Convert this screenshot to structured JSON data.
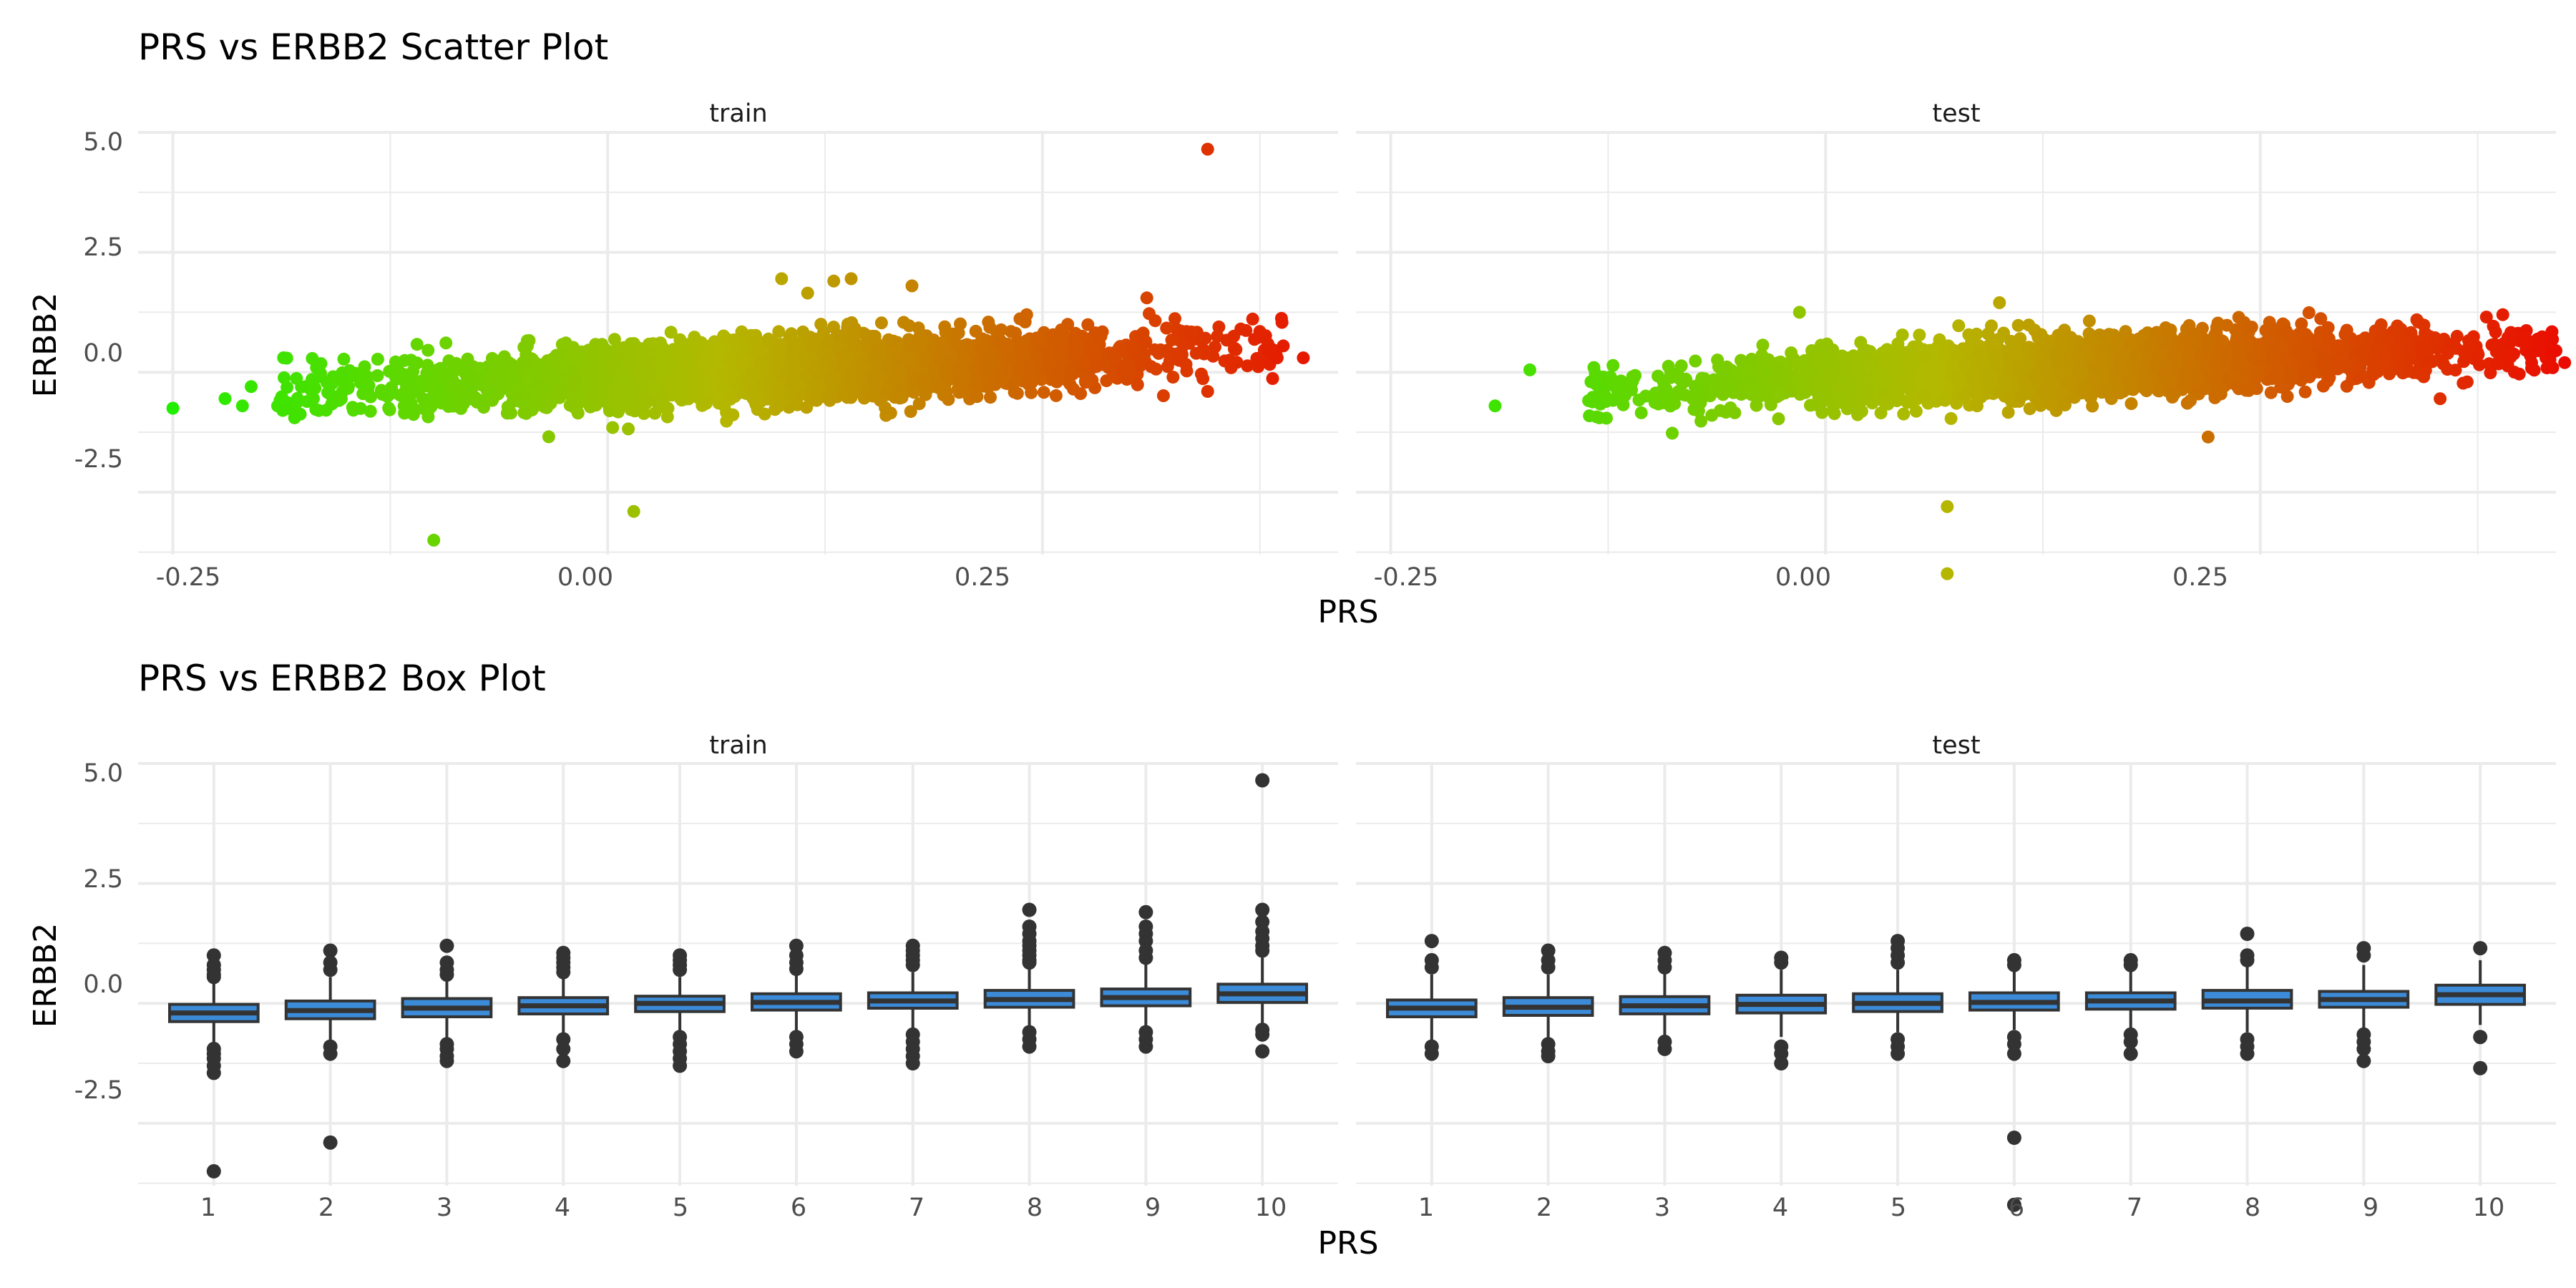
{
  "titles": {
    "scatter": "PRS vs ERBB2 Scatter Plot",
    "box": "PRS vs ERBB2 Box Plot"
  },
  "facets": [
    "train",
    "test"
  ],
  "axes": {
    "x_title": "PRS",
    "y_title": "ERBB2",
    "y_ticks": [
      "5.0",
      "2.5",
      "0.0",
      "-2.5"
    ],
    "scatter_x_ticks": [
      "-0.25",
      "0.00",
      "0.25"
    ],
    "box_x_ticks": [
      "1",
      "2",
      "3",
      "4",
      "5",
      "6",
      "7",
      "8",
      "9",
      "10"
    ]
  },
  "colors": {
    "low": "#22ee00",
    "mid": "#b4b800",
    "high": "#ee0000",
    "box_fill": "#3b8bd8",
    "box_line": "#333333",
    "point_dark": "#333333"
  },
  "chart_data": [
    {
      "type": "scatter",
      "title": "PRS vs ERBB2 Scatter Plot",
      "xlabel": "PRS",
      "ylabel": "ERBB2",
      "xlim": [
        -0.27,
        0.42
      ],
      "ylim": [
        -3.8,
        5.0
      ],
      "grid": true,
      "color_by": "PRS",
      "panels": [
        {
          "facet": "train",
          "core": {
            "x_range": [
              -0.19,
              0.39
            ],
            "slope": 1.4,
            "spread": 0.32
          },
          "outliers": [
            {
              "x": -0.25,
              "y": -0.75
            },
            {
              "x": -0.22,
              "y": -0.55
            },
            {
              "x": -0.21,
              "y": -0.7
            },
            {
              "x": -0.205,
              "y": -0.3
            },
            {
              "x": -0.18,
              "y": -0.95
            },
            {
              "x": -0.17,
              "y": -0.15
            },
            {
              "x": -0.1,
              "y": -3.5
            },
            {
              "x": 0.015,
              "y": -2.9
            },
            {
              "x": 0.1,
              "y": 1.95
            },
            {
              "x": 0.13,
              "y": 1.9
            },
            {
              "x": 0.14,
              "y": 1.95
            },
            {
              "x": 0.115,
              "y": 1.65
            },
            {
              "x": 0.175,
              "y": 1.8
            },
            {
              "x": 0.31,
              "y": 1.55
            },
            {
              "x": 0.345,
              "y": 4.65
            },
            {
              "x": 0.36,
              "y": 0.75
            },
            {
              "x": 0.375,
              "y": 0.85
            },
            {
              "x": 0.38,
              "y": 0.45
            },
            {
              "x": 0.385,
              "y": 0.3
            },
            {
              "x": 0.4,
              "y": 0.3
            },
            {
              "x": 0.345,
              "y": -0.4
            }
          ]
        },
        {
          "facet": "test",
          "core": {
            "x_range": [
              -0.14,
              0.42
            ],
            "slope": 1.5,
            "spread": 0.3
          },
          "outliers": [
            {
              "x": -0.19,
              "y": -0.7
            },
            {
              "x": -0.17,
              "y": 0.05
            },
            {
              "x": -0.13,
              "y": -0.95
            },
            {
              "x": -0.015,
              "y": 1.25
            },
            {
              "x": 0.1,
              "y": 1.45
            },
            {
              "x": 0.07,
              "y": -2.8
            },
            {
              "x": 0.07,
              "y": -4.2
            },
            {
              "x": 0.22,
              "y": -1.35
            },
            {
              "x": 0.38,
              "y": 1.15
            },
            {
              "x": 0.395,
              "y": 0.75
            },
            {
              "x": 0.41,
              "y": 0.45
            },
            {
              "x": 0.42,
              "y": 0.45
            },
            {
              "x": 0.425,
              "y": 0.2
            },
            {
              "x": 0.445,
              "y": 0.75
            },
            {
              "x": 0.445,
              "y": 0.4
            }
          ]
        }
      ]
    },
    {
      "type": "box",
      "title": "PRS vs ERBB2 Box Plot",
      "xlabel": "PRS",
      "ylabel": "ERBB2",
      "categories": [
        "1",
        "2",
        "3",
        "4",
        "5",
        "6",
        "7",
        "8",
        "9",
        "10"
      ],
      "ylim": [
        -3.8,
        5.0
      ],
      "grid": true,
      "panels": [
        {
          "facet": "train",
          "boxes": [
            {
              "q1": -0.38,
              "median": -0.2,
              "q3": -0.02,
              "whisker_low": -0.9,
              "whisker_high": 0.45,
              "outliers": [
                1.0,
                0.8,
                0.7,
                0.6,
                0.55,
                -0.95,
                -1.05,
                -1.15,
                -1.3,
                -1.45,
                -3.5
              ]
            },
            {
              "q1": -0.32,
              "median": -0.15,
              "q3": 0.05,
              "whisker_low": -0.85,
              "whisker_high": 0.55,
              "outliers": [
                1.1,
                0.85,
                0.7,
                -0.9,
                -1.05,
                -2.9
              ]
            },
            {
              "q1": -0.28,
              "median": -0.1,
              "q3": 0.1,
              "whisker_low": -0.75,
              "whisker_high": 0.55,
              "outliers": [
                1.2,
                0.85,
                0.7,
                0.6,
                -0.85,
                -0.95,
                -1.1,
                -1.2
              ]
            },
            {
              "q1": -0.22,
              "median": -0.05,
              "q3": 0.12,
              "whisker_low": -0.65,
              "whisker_high": 0.55,
              "outliers": [
                1.05,
                0.95,
                0.85,
                0.75,
                0.65,
                -0.75,
                -0.95,
                -1.2
              ]
            },
            {
              "q1": -0.17,
              "median": 0.0,
              "q3": 0.15,
              "whisker_low": -0.6,
              "whisker_high": 0.55,
              "outliers": [
                1.0,
                0.9,
                0.8,
                0.7,
                -0.7,
                -0.85,
                -1.0,
                -1.15,
                -1.3
              ]
            },
            {
              "q1": -0.14,
              "median": 0.02,
              "q3": 0.2,
              "whisker_low": -0.6,
              "whisker_high": 0.6,
              "outliers": [
                1.2,
                1.0,
                0.85,
                0.72,
                -0.7,
                -0.85,
                -1.0
              ]
            },
            {
              "q1": -0.1,
              "median": 0.05,
              "q3": 0.22,
              "whisker_low": -0.55,
              "whisker_high": 0.65,
              "outliers": [
                1.2,
                1.1,
                1.0,
                0.9,
                0.8,
                -0.65,
                -0.8,
                -0.95,
                -1.1,
                -1.25
              ]
            },
            {
              "q1": -0.08,
              "median": 0.08,
              "q3": 0.27,
              "whisker_low": -0.55,
              "whisker_high": 0.75,
              "outliers": [
                1.95,
                1.6,
                1.45,
                1.3,
                1.2,
                1.1,
                1.0,
                0.9,
                0.85,
                -0.6,
                -0.75,
                -0.9
              ]
            },
            {
              "q1": -0.05,
              "median": 0.12,
              "q3": 0.3,
              "whisker_low": -0.5,
              "whisker_high": 0.85,
              "outliers": [
                1.9,
                1.6,
                1.45,
                1.3,
                1.1,
                0.95,
                -0.6,
                -0.75,
                -0.9
              ]
            },
            {
              "q1": 0.02,
              "median": 0.2,
              "q3": 0.4,
              "whisker_low": -0.45,
              "whisker_high": 0.95,
              "outliers": [
                4.65,
                1.95,
                1.7,
                1.5,
                1.35,
                1.2,
                1.1,
                -0.55,
                -0.65,
                -1.0
              ]
            }
          ]
        },
        {
          "facet": "test",
          "boxes": [
            {
              "q1": -0.28,
              "median": -0.1,
              "q3": 0.07,
              "whisker_low": -0.8,
              "whisker_high": 0.6,
              "outliers": [
                1.3,
                0.9,
                0.75,
                -0.9,
                -1.05
              ]
            },
            {
              "q1": -0.25,
              "median": -0.08,
              "q3": 0.12,
              "whisker_low": -0.75,
              "whisker_high": 0.6,
              "outliers": [
                1.1,
                0.9,
                0.75,
                -0.85,
                -1.0,
                -1.1
              ]
            },
            {
              "q1": -0.22,
              "median": -0.05,
              "q3": 0.14,
              "whisker_low": -0.7,
              "whisker_high": 0.65,
              "outliers": [
                1.05,
                0.9,
                0.75,
                -0.8,
                -0.95
              ]
            },
            {
              "q1": -0.2,
              "median": -0.02,
              "q3": 0.17,
              "whisker_low": -0.7,
              "whisker_high": 0.7,
              "outliers": [
                0.95,
                0.85,
                -0.9,
                -1.05,
                -1.25
              ]
            },
            {
              "q1": -0.17,
              "median": 0.0,
              "q3": 0.2,
              "whisker_low": -0.6,
              "whisker_high": 0.7,
              "outliers": [
                1.3,
                1.15,
                1.0,
                0.85,
                -0.75,
                -0.9,
                -1.05
              ]
            },
            {
              "q1": -0.14,
              "median": 0.02,
              "q3": 0.22,
              "whisker_low": -0.55,
              "whisker_high": 0.7,
              "outliers": [
                0.9,
                0.8,
                -0.7,
                -0.85,
                -1.05,
                -2.8,
                -4.2
              ]
            },
            {
              "q1": -0.12,
              "median": 0.05,
              "q3": 0.22,
              "whisker_low": -0.55,
              "whisker_high": 0.7,
              "outliers": [
                0.9,
                0.8,
                -0.65,
                -0.8,
                -1.05
              ]
            },
            {
              "q1": -0.1,
              "median": 0.05,
              "q3": 0.27,
              "whisker_low": -0.6,
              "whisker_high": 0.8,
              "outliers": [
                1.45,
                1.0,
                0.9,
                -0.75,
                -0.9,
                -1.05
              ]
            },
            {
              "q1": -0.08,
              "median": 0.08,
              "q3": 0.25,
              "whisker_low": -0.55,
              "whisker_high": 0.8,
              "outliers": [
                1.15,
                1.0,
                -0.65,
                -0.8,
                -0.95,
                -1.2
              ]
            },
            {
              "q1": -0.02,
              "median": 0.18,
              "q3": 0.38,
              "whisker_low": -0.45,
              "whisker_high": 0.9,
              "outliers": [
                1.15,
                -0.7,
                -1.35
              ]
            }
          ]
        }
      ]
    }
  ]
}
